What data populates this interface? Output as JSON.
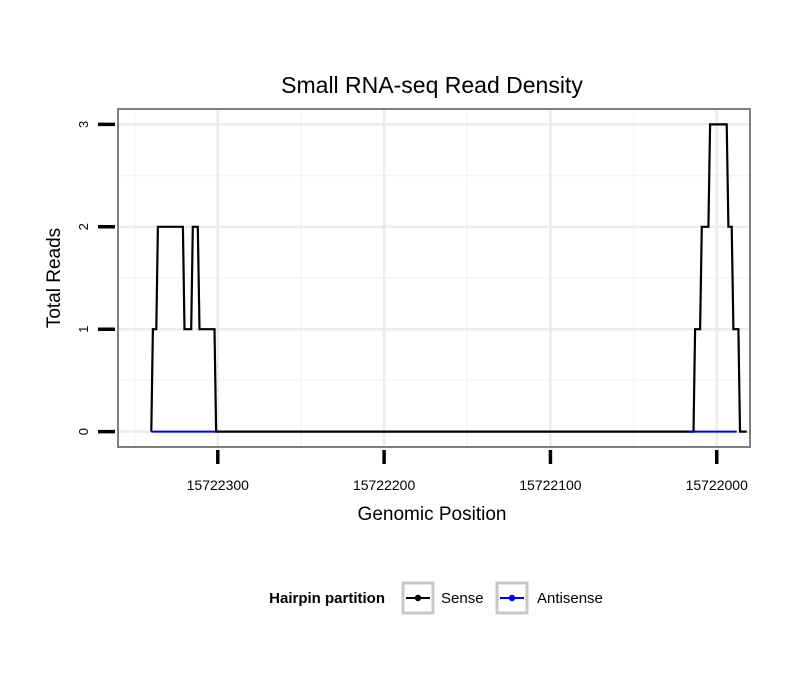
{
  "chart_data": {
    "type": "line",
    "title": "Small RNA-seq Read Density",
    "xlabel": "Genomic Position",
    "ylabel": "Total Reads",
    "x_reversed": true,
    "xlim": [
      15722360,
      15721980
    ],
    "ylim": [
      -0.15,
      3.15
    ],
    "x_ticks": [
      15722300,
      15722200,
      15722100,
      15722000
    ],
    "x_tick_labels": [
      "15722300",
      "15722200",
      "15722100",
      "15722000"
    ],
    "y_ticks": [
      0,
      1,
      2,
      3
    ],
    "y_tick_labels": [
      "0",
      "1",
      "2",
      "3"
    ],
    "grid": true,
    "legend": {
      "title": "Hairpin partition",
      "position": "bottom",
      "entries": [
        "Sense",
        "Antisense"
      ]
    },
    "series": [
      {
        "name": "Sense",
        "color": "#000000",
        "points": [
          [
            15722340,
            0
          ],
          [
            15722339,
            1
          ],
          [
            15722337,
            1
          ],
          [
            15722336,
            2
          ],
          [
            15722321,
            2
          ],
          [
            15722320,
            1
          ],
          [
            15722316,
            1
          ],
          [
            15722315,
            2
          ],
          [
            15722312,
            2
          ],
          [
            15722311,
            1
          ],
          [
            15722302,
            1
          ],
          [
            15722301,
            0
          ],
          [
            15722014,
            0
          ],
          [
            15722013,
            1
          ],
          [
            15722010,
            1
          ],
          [
            15722009,
            2
          ],
          [
            15722005,
            2
          ],
          [
            15722004,
            3
          ],
          [
            15721994,
            3
          ],
          [
            15721993,
            2
          ],
          [
            15721991,
            2
          ],
          [
            15721990,
            1
          ],
          [
            15721987,
            1
          ],
          [
            15721986,
            0
          ],
          [
            15721982,
            0
          ]
        ]
      },
      {
        "name": "Antisense",
        "color": "#0000ff",
        "points": [
          [
            15722340,
            0
          ],
          [
            15722301,
            0
          ]
        ],
        "points_2": [
          [
            15722017,
            0
          ],
          [
            15721988,
            0
          ]
        ]
      }
    ]
  }
}
